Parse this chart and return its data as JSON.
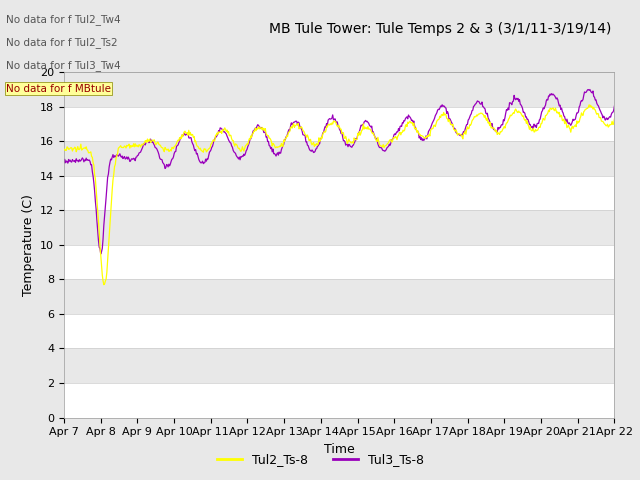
{
  "title": "MB Tule Tower: Tule Temps 2 & 3 (3/1/11-3/19/14)",
  "xlabel": "Time",
  "ylabel": "Temperature (C)",
  "ylim": [
    0,
    20
  ],
  "yticks": [
    0,
    2,
    4,
    6,
    8,
    10,
    12,
    14,
    16,
    18,
    20
  ],
  "xtick_labels": [
    "Apr 7",
    "Apr 8",
    "Apr 9",
    "Apr 10",
    "Apr 11",
    "Apr 12",
    "Apr 13",
    "Apr 14",
    "Apr 15",
    "Apr 16",
    "Apr 17",
    "Apr 18",
    "Apr 19",
    "Apr 20",
    "Apr 21",
    "Apr 22"
  ],
  "color_tul2": "#ffff00",
  "color_tul3": "#9900bb",
  "legend_labels": [
    "Tul2_Ts-8",
    "Tul3_Ts-8"
  ],
  "no_data_texts": [
    "No data for f Tul2_Tw4",
    "No data for f Tul2_Ts2",
    "No data for f Tul3_Tw4",
    "No data for f MBtule"
  ],
  "bg_color": "#e8e8e8",
  "title_fontsize": 10,
  "axis_fontsize": 9,
  "tick_fontsize": 8,
  "legend_fontsize": 9
}
